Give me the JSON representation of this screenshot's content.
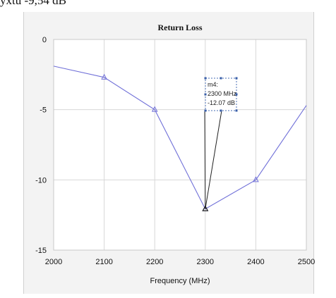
{
  "caption": "ухtu -9,54 dB",
  "chart_data": {
    "type": "line",
    "title": "Return Loss",
    "xlabel": "Frequency (MHz)",
    "ylabel": "",
    "xlim": [
      2000,
      2500
    ],
    "ylim": [
      -15,
      0
    ],
    "xticks": [
      2000,
      2100,
      2200,
      2300,
      2400,
      2500
    ],
    "yticks": [
      0,
      -5,
      -10,
      -15
    ],
    "grid": true,
    "series": [
      {
        "color": "#7070d8",
        "x": [
          2000,
          2100,
          2200,
          2300,
          2400,
          2500
        ],
        "y": [
          -1.9,
          -2.7,
          -5.0,
          -12.07,
          -10.0,
          -4.7
        ]
      }
    ],
    "marker": {
      "label_name": "m4:",
      "label_x": "2300 MHz",
      "label_y": "-12.07 dB",
      "x": 2300,
      "y": -12.07
    }
  }
}
